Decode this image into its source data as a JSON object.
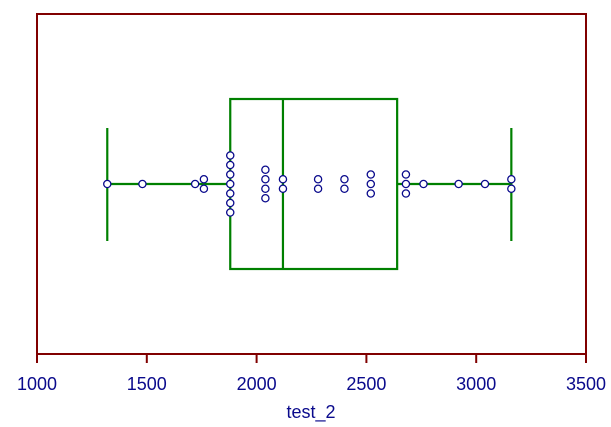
{
  "chart_data": {
    "type": "box",
    "title": "",
    "xlabel": "test_2",
    "ylabel": "",
    "xlim": [
      1000,
      3500
    ],
    "x_ticks": [
      1000,
      1500,
      2000,
      2500,
      3000,
      3500
    ],
    "x_tick_labels": [
      "1000",
      "1500",
      "2000",
      "2500",
      "3000",
      "3500"
    ],
    "grid": false,
    "box": {
      "whisker_low": 1320,
      "q1": 1880,
      "median": 2120,
      "q3": 2640,
      "whisker_high": 3160
    },
    "points": [
      1320,
      1480,
      1720,
      1760,
      1760,
      1880,
      1880,
      1880,
      1880,
      1880,
      1880,
      1880,
      2040,
      2040,
      2040,
      2040,
      2120,
      2120,
      2280,
      2280,
      2400,
      2400,
      2520,
      2520,
      2520,
      2680,
      2680,
      2680,
      2760,
      2920,
      3040,
      3160,
      3160
    ],
    "colors": {
      "frame": "#800000",
      "box": "#008000",
      "points_stroke": "#0a0a8c",
      "points_fill": "#ffffff",
      "text": "#0a0a8c"
    }
  }
}
